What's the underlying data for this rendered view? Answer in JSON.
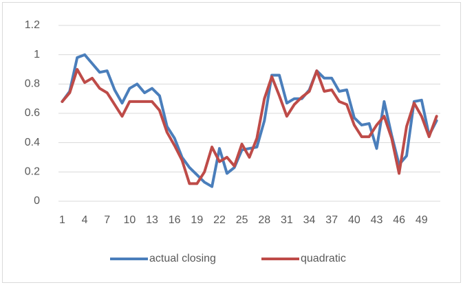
{
  "chart_data": {
    "type": "line",
    "categories": [
      1,
      null,
      null,
      4,
      null,
      null,
      7,
      null,
      null,
      10,
      null,
      null,
      13,
      null,
      null,
      16,
      null,
      null,
      19,
      null,
      null,
      22,
      null,
      null,
      25,
      null,
      null,
      28,
      null,
      null,
      31,
      null,
      null,
      34,
      null,
      null,
      37,
      null,
      null,
      40,
      null,
      null,
      43,
      null,
      null,
      46,
      null,
      null,
      49,
      null,
      null
    ],
    "series": [
      {
        "name": "actual closing",
        "color": "#4a7ebb",
        "values": [
          0.68,
          0.75,
          0.98,
          1.0,
          0.94,
          0.88,
          0.89,
          0.76,
          0.67,
          0.77,
          0.8,
          0.74,
          0.77,
          0.72,
          0.51,
          0.43,
          0.3,
          0.23,
          0.18,
          0.13,
          0.1,
          0.36,
          0.19,
          0.23,
          0.35,
          0.36,
          0.37,
          0.55,
          0.86,
          0.86,
          0.67,
          0.7,
          0.7,
          0.76,
          0.89,
          0.84,
          0.84,
          0.75,
          0.76,
          0.57,
          0.52,
          0.53,
          0.36,
          0.68,
          0.45,
          0.25,
          0.31,
          0.68,
          0.69,
          0.45,
          0.55
        ]
      },
      {
        "name": "quadratic",
        "color": "#be4b48",
        "values": [
          0.68,
          0.74,
          0.9,
          0.81,
          0.84,
          0.77,
          0.74,
          0.66,
          0.58,
          0.68,
          0.68,
          0.68,
          0.68,
          0.62,
          0.47,
          0.38,
          0.28,
          0.12,
          0.12,
          0.2,
          0.37,
          0.27,
          0.3,
          0.24,
          0.39,
          0.3,
          0.43,
          0.7,
          0.85,
          0.72,
          0.58,
          0.66,
          0.71,
          0.75,
          0.89,
          0.75,
          0.76,
          0.68,
          0.66,
          0.52,
          0.44,
          0.44,
          0.52,
          0.58,
          0.43,
          0.19,
          0.51,
          0.67,
          0.58,
          0.44,
          0.58
        ]
      }
    ],
    "ylim": [
      0,
      1.2
    ],
    "yticks": [
      0,
      0.2,
      0.4,
      0.6,
      0.8,
      1,
      1.2
    ],
    "grid": true,
    "legend": "bottom"
  }
}
